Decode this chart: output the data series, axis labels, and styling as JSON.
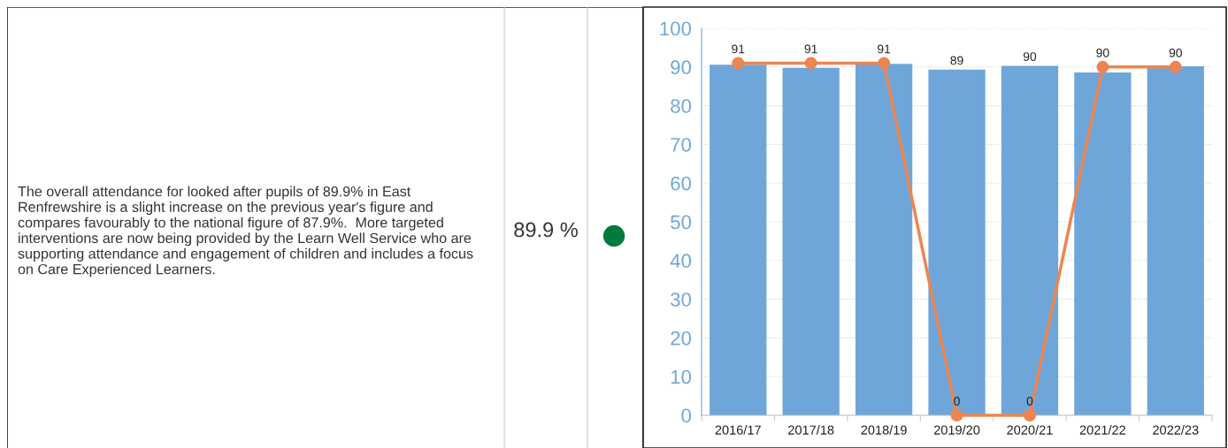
{
  "chart_data": [
    {
      "type": "other",
      "annotations": [
        "The overall attendance for looked after pupils of 89.9% in East Renfrewshire is a slight increase on the previous year's figure and compares favourably to the national figure of 87.9%.  More targeted interventions are now being provided by the Learn Well Service who are supporting attendance and engagement of children and includes a focus on Care Experienced Learners.",
        "89.9 %"
      ]
    },
    {
      "type": "bar",
      "categories": [
        "2016/17",
        "2017/18",
        "2018/19",
        "2019/20",
        "2020/21",
        "2021/22",
        "2022/23"
      ],
      "ylim": [
        0,
        100
      ],
      "yticks": [
        0,
        10,
        20,
        30,
        40,
        50,
        60,
        70,
        80,
        90,
        100
      ],
      "grid": "y",
      "legend": false,
      "series": [
        {
          "type": "bar",
          "color": "#6fa6d9",
          "values": [
            90.6,
            89.8,
            90.8,
            89.3,
            90.3,
            88.6,
            90.2
          ],
          "value_labels": [
            null,
            null,
            null,
            "89",
            "90",
            null,
            null
          ]
        },
        {
          "type": "line",
          "color": "#ed8550",
          "marker": "circle",
          "data_labels": true,
          "values": [
            91,
            91,
            91,
            0,
            0,
            90,
            90
          ]
        }
      ]
    }
  ]
}
